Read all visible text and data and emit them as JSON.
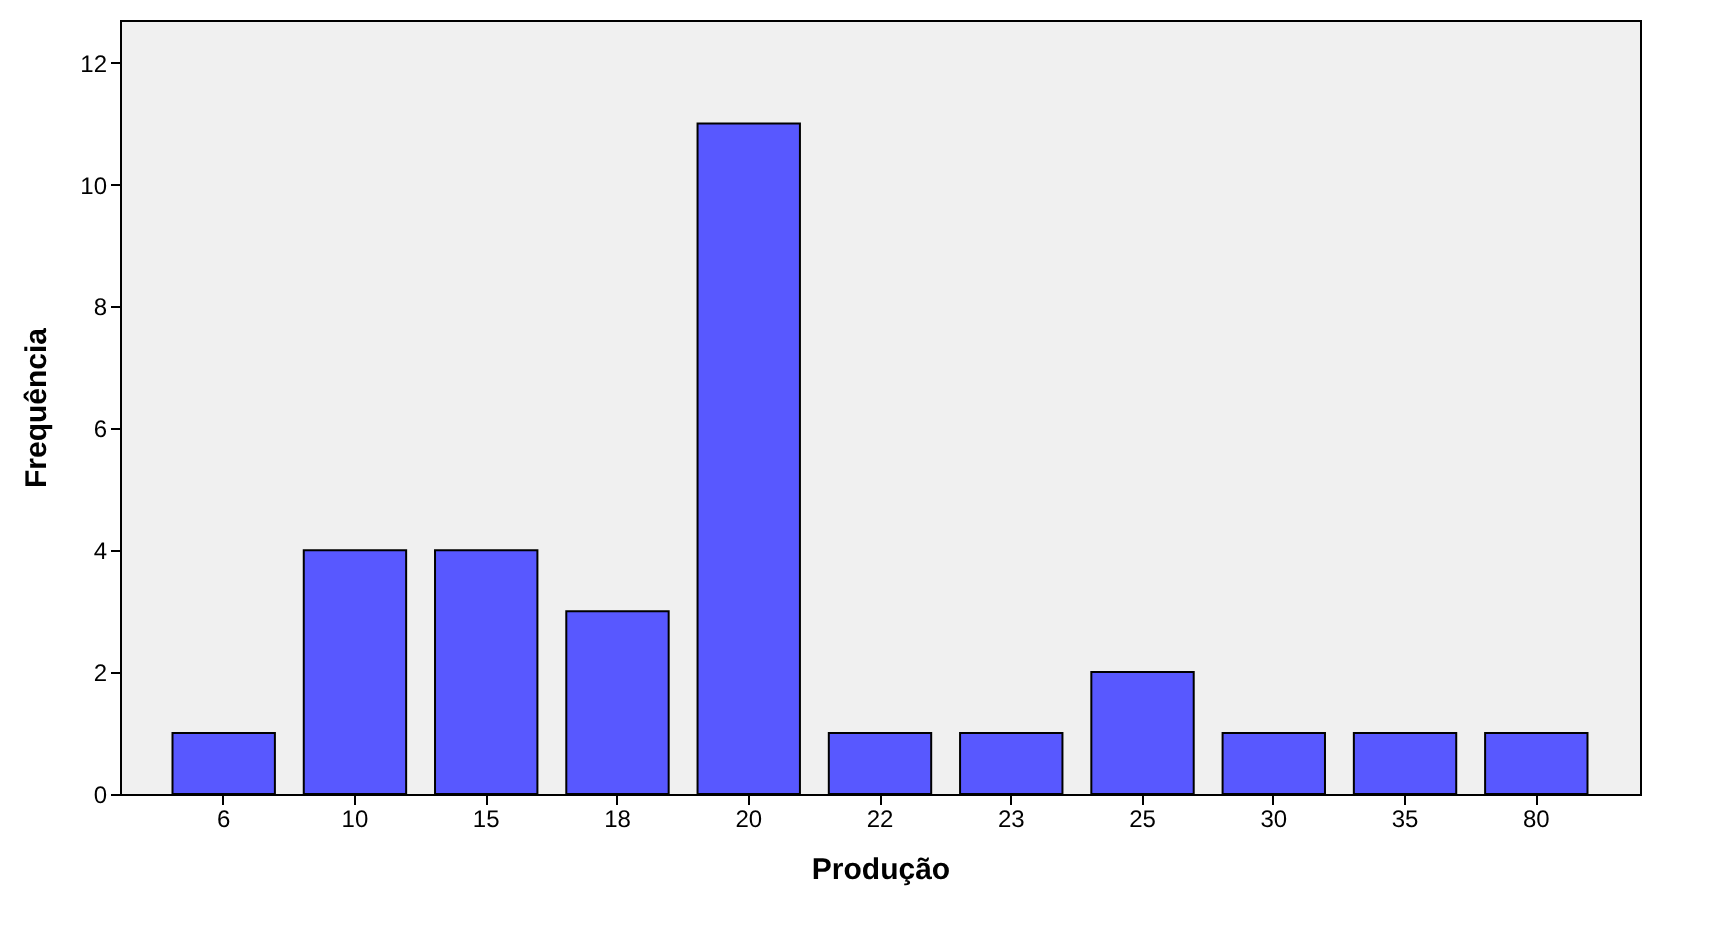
{
  "chart_data": {
    "type": "bar",
    "xlabel": "Produção",
    "ylabel": "Frequência",
    "categories": [
      "6",
      "10",
      "15",
      "18",
      "20",
      "22",
      "23",
      "25",
      "30",
      "35",
      "80"
    ],
    "values": [
      1,
      4,
      4,
      3,
      11,
      1,
      1,
      2,
      1,
      1,
      1
    ],
    "color": "#5858ff",
    "ylim": [
      0,
      12.7
    ],
    "yticks": [
      0,
      2,
      4,
      6,
      8,
      10,
      12
    ],
    "grid": false
  }
}
